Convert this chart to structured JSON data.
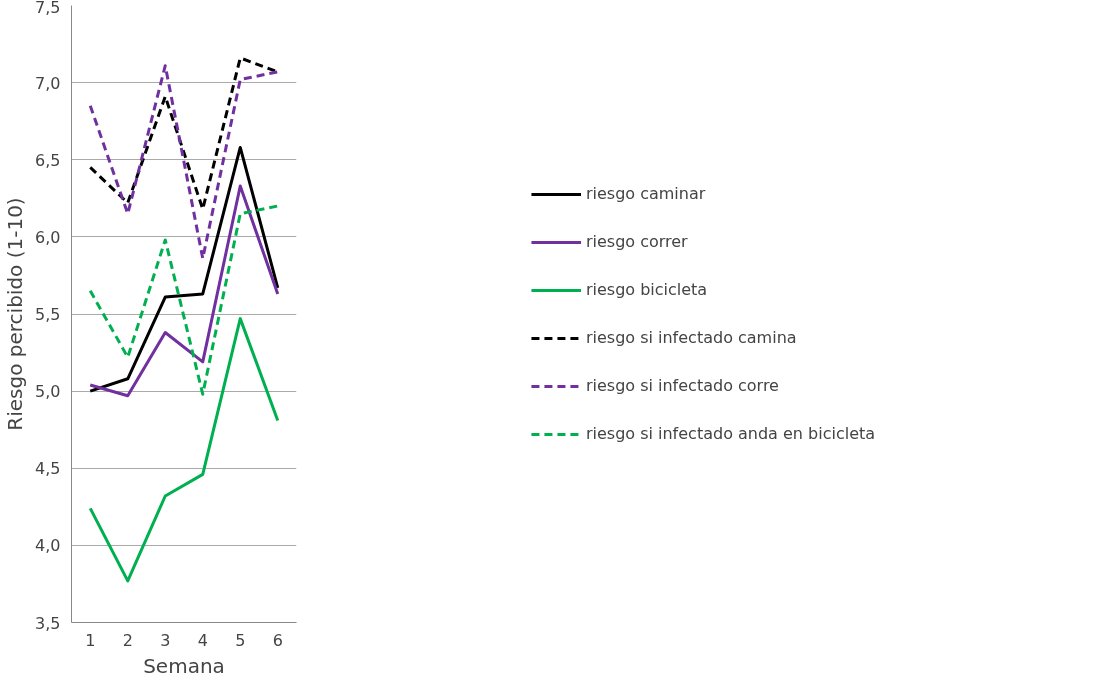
{
  "chart_data": {
    "type": "line",
    "xlabel": "Semana",
    "ylabel": "Riesgo percibido (1-10)",
    "categories": [
      "1",
      "2",
      "3",
      "4",
      "5",
      "6"
    ],
    "series": [
      {
        "name": "riesgo caminar",
        "color": "#000000",
        "line_style": "solid",
        "values": [
          5.0,
          5.08,
          5.61,
          5.63,
          6.58,
          5.67
        ]
      },
      {
        "name": "riesgo correr",
        "color": "#7030a0",
        "line_style": "solid",
        "values": [
          5.04,
          4.97,
          5.38,
          5.19,
          6.33,
          5.63
        ]
      },
      {
        "name": "riesgo bicicleta",
        "color": "#00b050",
        "line_style": "solid",
        "values": [
          4.24,
          3.77,
          4.32,
          4.46,
          5.47,
          4.81
        ]
      },
      {
        "name": "riesgo si infectado camina",
        "color": "#000000",
        "line_style": "dashed",
        "values": [
          6.45,
          6.22,
          6.91,
          6.18,
          7.16,
          7.07
        ]
      },
      {
        "name": "riesgo si infectado corre",
        "color": "#7030a0",
        "line_style": "dashed",
        "values": [
          6.85,
          6.15,
          7.11,
          5.86,
          7.02,
          7.07
        ]
      },
      {
        "name": "riesgo si infectado anda en bicicleta",
        "color": "#00b050",
        "line_style": "dashed",
        "values": [
          5.65,
          5.22,
          5.98,
          4.98,
          6.15,
          6.2
        ]
      }
    ],
    "ylim": [
      3.5,
      7.5
    ],
    "yticks": [
      {
        "value": 3.5,
        "label": "3,5"
      },
      {
        "value": 4.0,
        "label": "4,0"
      },
      {
        "value": 4.5,
        "label": "4,5"
      },
      {
        "value": 5.0,
        "label": "5,0"
      },
      {
        "value": 5.5,
        "label": "5,5"
      },
      {
        "value": 6.0,
        "label": "6,0"
      },
      {
        "value": 6.5,
        "label": "6,5"
      },
      {
        "value": 7.0,
        "label": "7,0"
      },
      {
        "value": 7.5,
        "label": "7,5"
      }
    ],
    "grid": "y",
    "legend": "right",
    "marker": "none"
  }
}
